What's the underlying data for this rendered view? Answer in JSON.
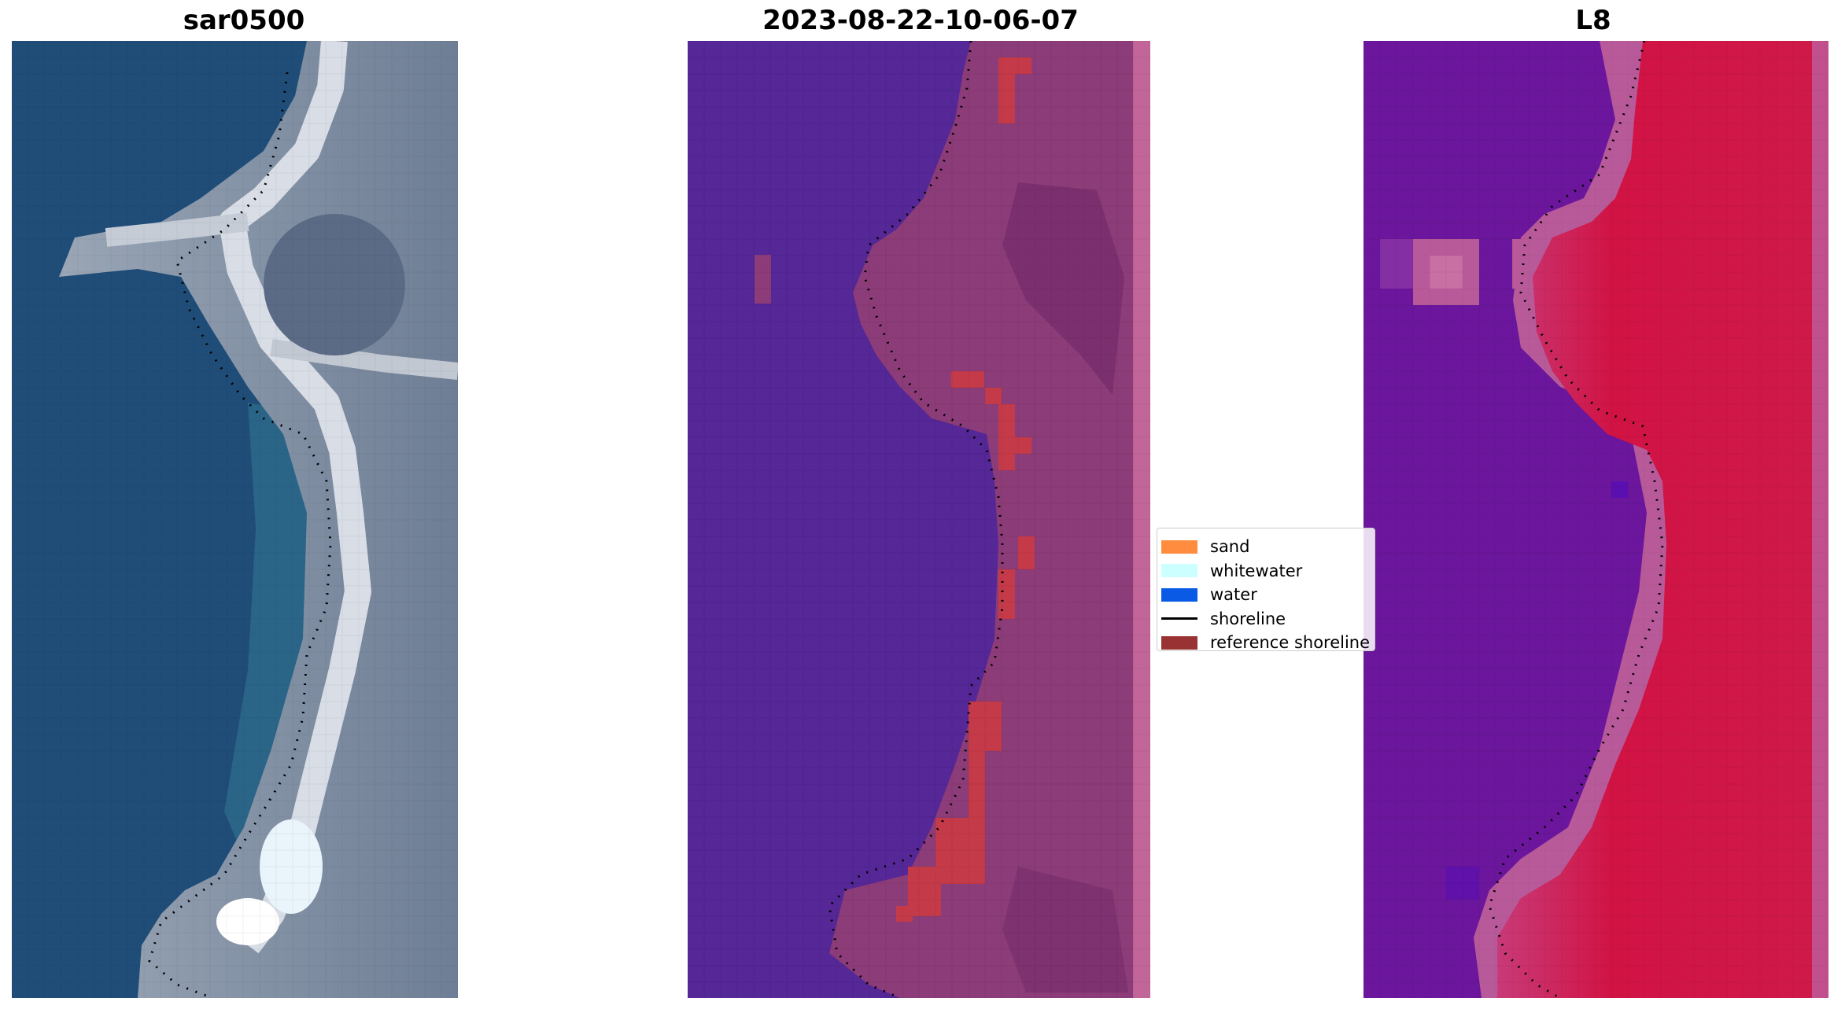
{
  "panels": [
    {
      "id": "rgb",
      "title": "sar0500",
      "kind": "rgb-satellite-image"
    },
    {
      "id": "classified",
      "title": "2023-08-22-10-06-07",
      "kind": "classification-overlay"
    },
    {
      "id": "index",
      "title": "L8",
      "kind": "water-index-image"
    }
  ],
  "legend": {
    "items": [
      {
        "label": "sand",
        "color": "#ff8c3f",
        "shape": "patch"
      },
      {
        "label": "whitewater",
        "color": "#ccffff",
        "shape": "patch"
      },
      {
        "label": "water",
        "color": "#0a5ae6",
        "shape": "patch"
      },
      {
        "label": "shoreline",
        "color": "#000000",
        "shape": "line"
      },
      {
        "label": "reference shoreline",
        "color": "#993333",
        "shape": "patch"
      }
    ]
  },
  "colors": {
    "deep_water": "#1f4d78",
    "classified_water": "#552797",
    "classified_land": "#8c3c78",
    "reference_band": "#c53a48",
    "index_water": "#6b169c",
    "index_land": "#d11344"
  }
}
